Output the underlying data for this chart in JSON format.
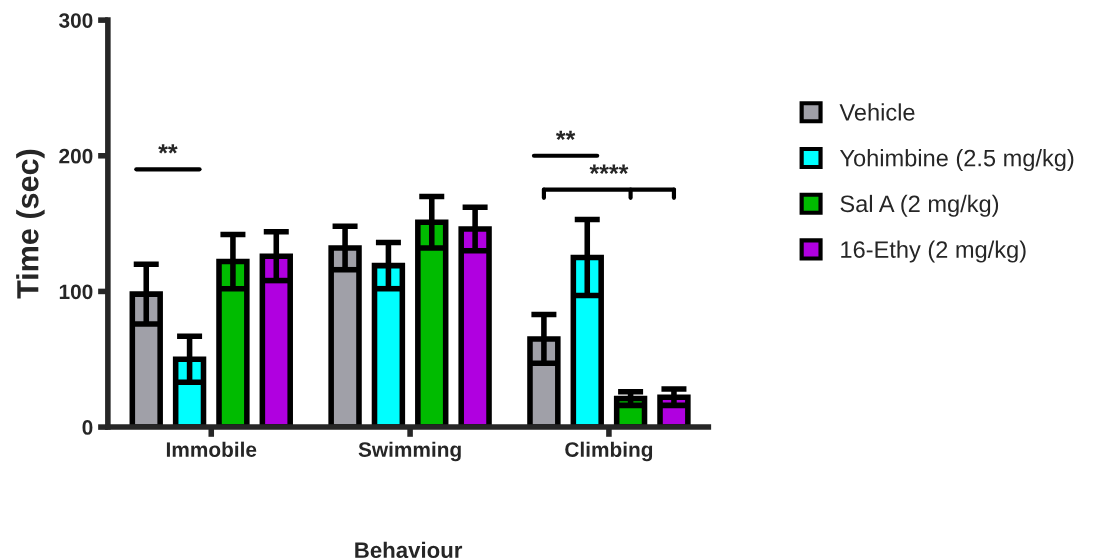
{
  "chart_data": {
    "type": "bar",
    "xlabel": "Behaviour",
    "ylabel": "Time (sec)",
    "categories": [
      "Immobile",
      "Swimming",
      "Climbing"
    ],
    "series": [
      {
        "name": "Vehicle",
        "color": "#a0a0a8",
        "values": [
          98,
          132,
          65
        ],
        "errors": [
          22,
          16,
          18
        ]
      },
      {
        "name": "Yohimbine (2.5 mg/kg)",
        "color": "#00ffff",
        "values": [
          50,
          119,
          125
        ],
        "errors": [
          17,
          17,
          28
        ]
      },
      {
        "name": "Sal A (2 mg/kg)",
        "color": "#00bb00",
        "values": [
          122,
          151,
          21
        ],
        "errors": [
          20,
          19,
          5
        ]
      },
      {
        "name": "16-Ethy (2 mg/kg)",
        "color": "#b000e0",
        "values": [
          126,
          146,
          22
        ],
        "errors": [
          18,
          16,
          6
        ]
      }
    ],
    "ylim": [
      0,
      300
    ],
    "yticks": [
      0,
      100,
      200,
      300
    ],
    "grid": false,
    "legend": "right",
    "annotations": [
      "**",
      "**",
      "****"
    ]
  }
}
